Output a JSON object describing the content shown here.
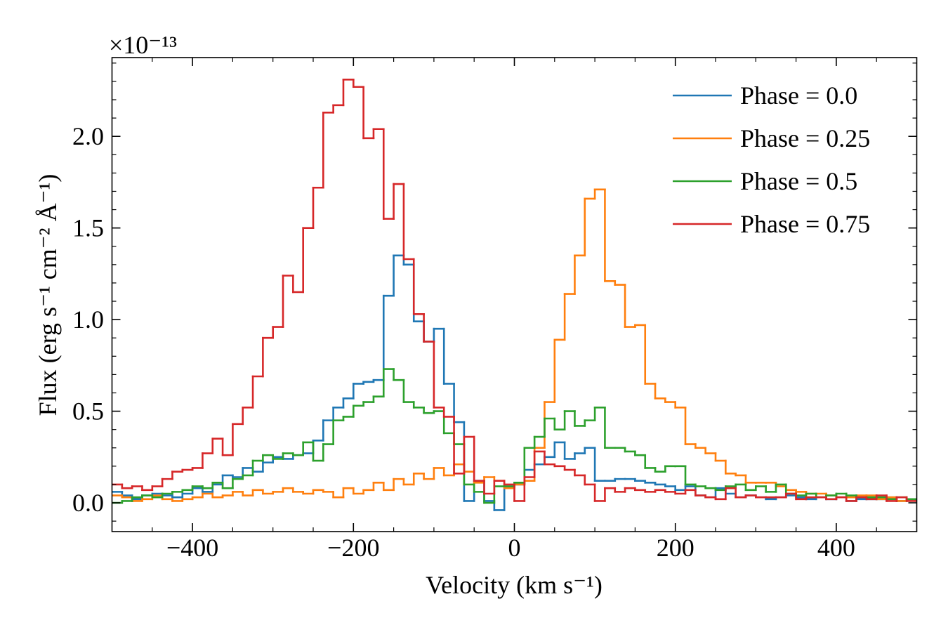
{
  "chart_data": {
    "type": "step",
    "offset_text": "×10⁻¹³",
    "x_label": "Velocity (km s⁻¹)",
    "y_label": "Flux (erg s⁻¹ cm⁻² Å⁻¹)",
    "xlim": [
      -500,
      500
    ],
    "ylim": [
      -0.157,
      2.43
    ],
    "xticks": [
      {
        "value": -400,
        "label": "−400"
      },
      {
        "value": -200,
        "label": "−200"
      },
      0,
      200,
      400
    ],
    "yticks": [
      {
        "value": 0,
        "label": "0.0"
      },
      0.5,
      {
        "value": 1,
        "label": "1.0"
      },
      1.5,
      {
        "value": 2,
        "label": "2.0"
      }
    ],
    "xminorticks": [
      -450,
      -350,
      -300,
      -250,
      -150,
      -100,
      -50,
      50,
      100,
      150,
      250,
      300,
      350,
      450
    ],
    "yminorticks": [
      -0.1,
      0.1,
      0.2,
      0.3,
      0.4,
      0.6,
      0.7,
      0.8,
      0.9,
      1.1,
      1.2,
      1.3,
      1.4,
      1.6,
      1.7,
      1.8,
      1.9,
      2.1,
      2.2,
      2.3,
      2.4
    ],
    "legend": "upper right",
    "x": [
      -493.75,
      -481.25,
      -468.75,
      -456.25,
      -443.75,
      -431.25,
      -418.75,
      -406.25,
      -393.75,
      -381.25,
      -368.75,
      -356.25,
      -343.75,
      -331.25,
      -318.75,
      -306.25,
      -293.75,
      -281.25,
      -268.75,
      -256.25,
      -243.75,
      -231.25,
      -218.75,
      -206.25,
      -193.75,
      -181.25,
      -168.75,
      -156.25,
      -143.75,
      -131.25,
      -118.75,
      -106.25,
      -93.75,
      -81.25,
      -68.75,
      -56.25,
      -43.75,
      -31.25,
      -18.75,
      -6.25,
      6.25,
      18.75,
      31.25,
      43.75,
      56.25,
      68.75,
      81.25,
      93.75,
      106.25,
      118.75,
      131.25,
      143.75,
      156.25,
      168.75,
      181.25,
      193.75,
      206.25,
      218.75,
      231.25,
      243.75,
      256.25,
      268.75,
      281.25,
      293.75,
      306.25,
      318.75,
      331.25,
      343.75,
      356.25,
      368.75,
      381.25,
      393.75,
      406.25,
      418.75,
      431.25,
      443.75,
      456.25,
      468.75,
      481.25,
      493.75
    ],
    "series": [
      {
        "name": "Phase = 0.0",
        "color": "#1f77b4",
        "values": [
          0.06,
          0.04,
          0.02,
          0.04,
          0.05,
          0.04,
          0.03,
          0.05,
          0.08,
          0.06,
          0.1,
          0.15,
          0.14,
          0.19,
          0.17,
          0.22,
          0.25,
          0.24,
          0.26,
          0.27,
          0.34,
          0.45,
          0.52,
          0.57,
          0.65,
          0.66,
          0.67,
          1.13,
          1.35,
          1.3,
          0.99,
          0.88,
          0.95,
          0.65,
          0.44,
          0.01,
          0.12,
          0.01,
          -0.04,
          0.09,
          0.1,
          0.18,
          0.21,
          0.25,
          0.33,
          0.24,
          0.27,
          0.3,
          0.12,
          0.12,
          0.13,
          0.13,
          0.12,
          0.11,
          0.1,
          0.09,
          0.07,
          0.09,
          0.04,
          0.03,
          0.08,
          0.05,
          0.03,
          0.04,
          0.03,
          0.02,
          0.03,
          0.04,
          0.03,
          0.02,
          0.03,
          0.02,
          0.03,
          0.01,
          0.02,
          0.02,
          0.02,
          0.03,
          0.01,
          0.02
        ]
      },
      {
        "name": "Phase = 0.25",
        "color": "#ff7f0e",
        "values": [
          0.04,
          0.03,
          0.01,
          0.02,
          0.04,
          0.02,
          0.01,
          0.02,
          0.03,
          0.05,
          0.03,
          0.04,
          0.06,
          0.04,
          0.07,
          0.05,
          0.06,
          0.08,
          0.06,
          0.05,
          0.07,
          0.06,
          0.03,
          0.08,
          0.05,
          0.07,
          0.11,
          0.07,
          0.13,
          0.1,
          0.16,
          0.13,
          0.19,
          0.15,
          0.21,
          0.17,
          0.11,
          0.14,
          0.12,
          0.08,
          0.1,
          0.12,
          0.3,
          0.55,
          0.89,
          1.14,
          1.35,
          1.66,
          1.71,
          1.21,
          1.19,
          0.96,
          0.97,
          0.65,
          0.57,
          0.55,
          0.52,
          0.32,
          0.3,
          0.27,
          0.23,
          0.16,
          0.15,
          0.11,
          0.11,
          0.11,
          0.09,
          0.07,
          0.06,
          0.05,
          0.05,
          0.04,
          0.03,
          0.03,
          0.04,
          0.04,
          0.02,
          0.03,
          0.01,
          0.02
        ]
      },
      {
        "name": "Phase = 0.5",
        "color": "#2ca02c",
        "values": [
          0.0,
          0.01,
          0.03,
          0.04,
          0.03,
          0.05,
          0.06,
          0.07,
          0.09,
          0.08,
          0.11,
          0.08,
          0.13,
          0.15,
          0.23,
          0.26,
          0.24,
          0.27,
          0.26,
          0.33,
          0.23,
          0.32,
          0.45,
          0.47,
          0.53,
          0.55,
          0.58,
          0.73,
          0.67,
          0.55,
          0.52,
          0.49,
          0.5,
          0.38,
          0.32,
          0.1,
          0.06,
          0.0,
          0.09,
          0.09,
          0.11,
          0.3,
          0.36,
          0.46,
          0.4,
          0.5,
          0.42,
          0.45,
          0.52,
          0.3,
          0.3,
          0.28,
          0.26,
          0.19,
          0.17,
          0.2,
          0.2,
          0.1,
          0.09,
          0.08,
          0.07,
          0.09,
          0.1,
          0.07,
          0.09,
          0.06,
          0.1,
          0.05,
          0.04,
          0.05,
          0.03,
          0.04,
          0.05,
          0.04,
          0.03,
          0.03,
          0.03,
          0.02,
          0.03,
          0.02
        ]
      },
      {
        "name": "Phase = 0.75",
        "color": "#d62728",
        "values": [
          0.1,
          0.08,
          0.09,
          0.07,
          0.09,
          0.13,
          0.17,
          0.18,
          0.19,
          0.27,
          0.35,
          0.26,
          0.43,
          0.52,
          0.69,
          0.9,
          0.96,
          1.24,
          1.15,
          1.5,
          1.72,
          2.13,
          2.17,
          2.31,
          2.27,
          1.99,
          2.04,
          1.55,
          1.74,
          1.33,
          1.03,
          0.88,
          0.52,
          0.47,
          0.16,
          0.36,
          0.12,
          0.05,
          0.12,
          0.1,
          0.01,
          0.14,
          0.28,
          0.21,
          0.2,
          0.18,
          0.15,
          0.1,
          0.01,
          0.08,
          0.06,
          0.08,
          0.07,
          0.06,
          0.07,
          0.06,
          0.05,
          0.07,
          0.04,
          0.03,
          0.02,
          0.08,
          0.03,
          0.04,
          0.03,
          0.03,
          0.03,
          0.05,
          0.02,
          0.03,
          0.03,
          0.02,
          0.03,
          0.01,
          0.03,
          0.02,
          0.04,
          0.01,
          0.03,
          0.01
        ]
      }
    ]
  }
}
